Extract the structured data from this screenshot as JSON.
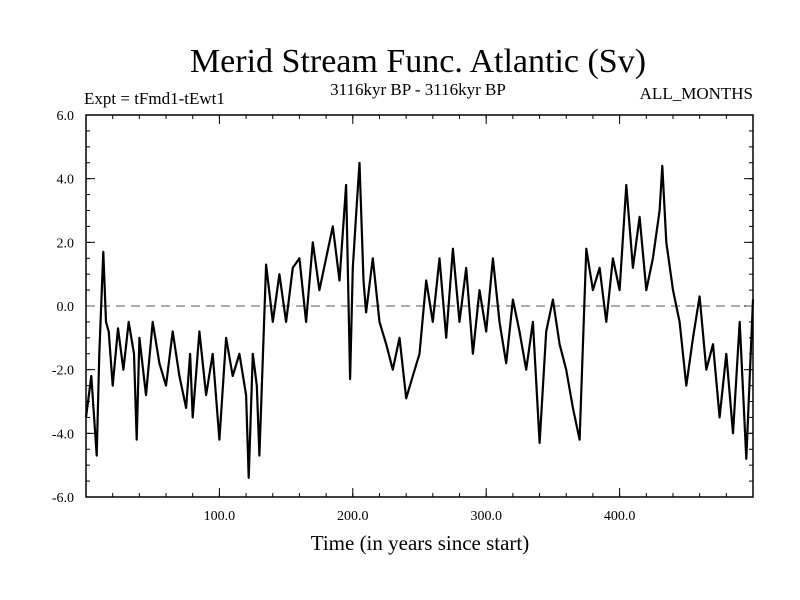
{
  "chart_data": {
    "type": "line",
    "title": "Merid Stream Func. Atlantic (Sv)",
    "subtitle_left": "Expt = tFmd1-tEwt1",
    "subtitle_center": "3116kyr BP - 3116kyr BP",
    "subtitle_right": "ALL_MONTHS",
    "xlabel": "Time (in years since start)",
    "ylabel": "",
    "xlim": [
      0,
      500
    ],
    "ylim": [
      -6.0,
      6.0
    ],
    "xticks": [
      100,
      200,
      300,
      400
    ],
    "xtick_labels": [
      "100.0",
      "200.0",
      "300.0",
      "400.0"
    ],
    "yticks": [
      -6,
      -4,
      -2,
      0,
      2,
      4,
      6
    ],
    "ytick_labels": [
      "-6.0",
      "-4.0",
      "-2.0",
      "0.0",
      "2.0",
      "4.0",
      "6.0"
    ],
    "zero_line": "dashed",
    "series": [
      {
        "name": "Merid Stream Func. Atlantic",
        "color": "#000000",
        "x": [
          0,
          4,
          8,
          10,
          13,
          15,
          17,
          20,
          24,
          28,
          32,
          36,
          38,
          40,
          45,
          50,
          55,
          60,
          65,
          70,
          75,
          78,
          80,
          85,
          90,
          95,
          100,
          105,
          110,
          115,
          120,
          122,
          125,
          128,
          130,
          135,
          140,
          145,
          150,
          155,
          160,
          165,
          170,
          175,
          180,
          185,
          190,
          195,
          198,
          200,
          203,
          205,
          208,
          210,
          215,
          220,
          225,
          230,
          235,
          240,
          245,
          250,
          255,
          260,
          265,
          270,
          275,
          280,
          285,
          290,
          295,
          300,
          305,
          310,
          315,
          320,
          325,
          330,
          335,
          340,
          345,
          350,
          355,
          360,
          365,
          370,
          375,
          380,
          385,
          390,
          395,
          400,
          405,
          410,
          415,
          420,
          425,
          430,
          432,
          435,
          440,
          445,
          450,
          455,
          460,
          465,
          470,
          475,
          480,
          485,
          490,
          495,
          500
        ],
        "y": [
          -3.5,
          -2.2,
          -4.7,
          -1.5,
          1.7,
          -0.5,
          -0.8,
          -2.5,
          -0.7,
          -2.0,
          -0.5,
          -1.5,
          -4.2,
          -1.0,
          -2.8,
          -0.5,
          -1.8,
          -2.5,
          -0.8,
          -2.2,
          -3.2,
          -1.5,
          -3.5,
          -0.8,
          -2.8,
          -1.5,
          -4.2,
          -1.0,
          -2.2,
          -1.5,
          -2.8,
          -5.4,
          -1.5,
          -2.5,
          -4.7,
          1.3,
          -0.5,
          1.0,
          -0.5,
          1.2,
          1.5,
          -0.5,
          2.0,
          0.5,
          1.5,
          2.5,
          0.8,
          3.8,
          -2.3,
          1.2,
          3.2,
          4.5,
          0.8,
          -0.2,
          1.5,
          -0.5,
          -1.2,
          -2.0,
          -1.0,
          -2.9,
          -2.2,
          -1.5,
          0.8,
          -0.5,
          1.5,
          -1.0,
          1.8,
          -0.5,
          1.2,
          -1.5,
          0.5,
          -0.8,
          1.5,
          -0.5,
          -1.8,
          0.2,
          -0.8,
          -2.0,
          -0.5,
          -4.3,
          -0.8,
          0.2,
          -1.2,
          -2.0,
          -3.2,
          -4.2,
          1.8,
          0.5,
          1.2,
          -0.5,
          1.5,
          0.5,
          3.8,
          1.2,
          2.8,
          0.5,
          1.5,
          3.0,
          4.4,
          2.0,
          0.5,
          -0.5,
          -2.5,
          -1.0,
          0.3,
          -2.0,
          -1.2,
          -3.5,
          -1.5,
          -4.0,
          -0.5,
          -4.8,
          0.2
        ]
      }
    ]
  }
}
